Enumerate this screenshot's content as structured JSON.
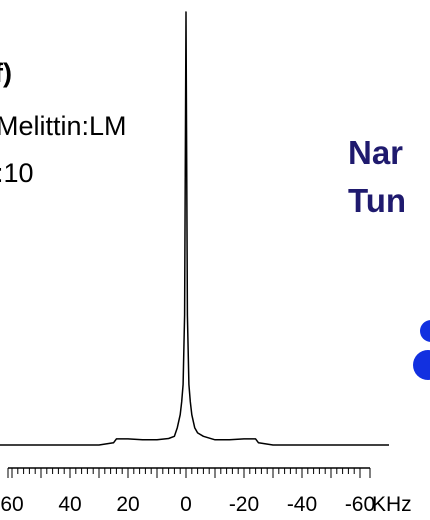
{
  "panel": {
    "label": "f)",
    "sample_line1": "Melittin:LM",
    "sample_line2": ":10"
  },
  "side_text": {
    "line1": "Nar",
    "line2": "Tun",
    "accent_color": "#1f1a6e",
    "blob_color": "#1230e0"
  },
  "chart_data": {
    "type": "line",
    "title": "",
    "xlabel": "KHz",
    "ylabel": "",
    "x_direction": "reversed",
    "xlim": [
      70,
      -70
    ],
    "tick_labels": [
      "60",
      "40",
      "20",
      "0",
      "-20",
      "-40",
      "-60"
    ],
    "tick_values": [
      60,
      40,
      20,
      0,
      -20,
      -40,
      -60
    ],
    "grid": false,
    "series": [
      {
        "x": [
          70,
          50,
          30,
          25,
          24,
          20,
          15,
          10,
          6,
          4,
          3,
          2,
          1.5,
          1,
          0.5,
          0.2,
          0,
          -0.2,
          -0.5,
          -1,
          -1.5,
          -2,
          -3,
          -4,
          -6,
          -10,
          -15,
          -20,
          -24,
          -25,
          -30,
          -50,
          -70
        ],
        "y": [
          0.0,
          0.0,
          0.0,
          0.005,
          0.014,
          0.014,
          0.012,
          0.012,
          0.015,
          0.02,
          0.04,
          0.07,
          0.1,
          0.14,
          0.3,
          0.7,
          1.0,
          0.7,
          0.3,
          0.14,
          0.1,
          0.07,
          0.04,
          0.028,
          0.02,
          0.012,
          0.012,
          0.014,
          0.014,
          0.005,
          0.0,
          0.0,
          0.0
        ]
      }
    ]
  }
}
